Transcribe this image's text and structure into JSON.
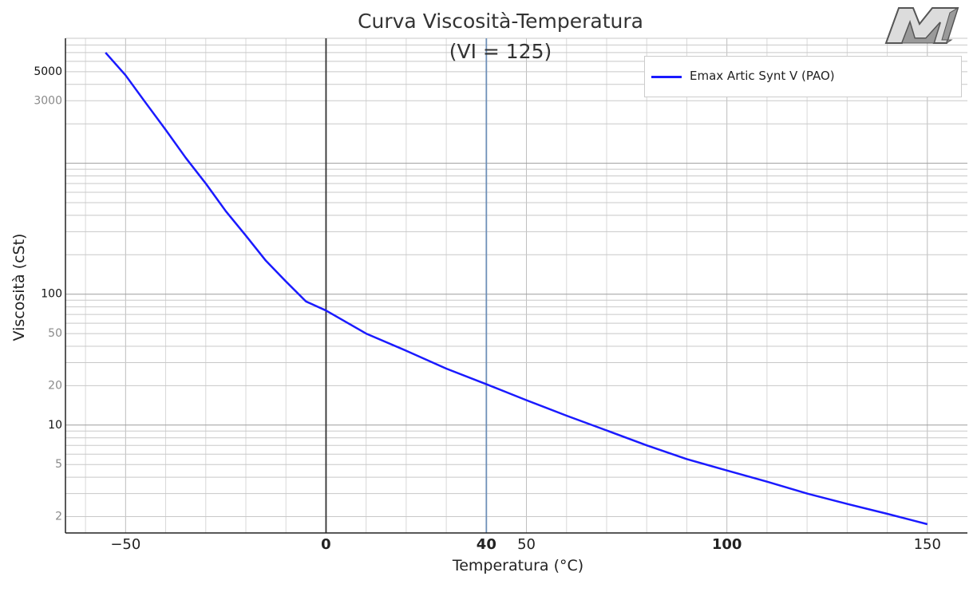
{
  "chart_data": {
    "type": "line",
    "title": "Curva Viscosità-Temperatura",
    "subtitle": "(VI = 125)",
    "xlabel": "Temperatura (°C)",
    "ylabel": "Viscosità (cSt)",
    "xlim": [
      -65,
      160
    ],
    "ylim": [
      1.5,
      9000
    ],
    "yscale": "log",
    "grid": true,
    "legend_position": "top-right",
    "xticks": [
      {
        "value": -50,
        "label": "−50",
        "bold": false
      },
      {
        "value": 0,
        "label": "0",
        "bold": true
      },
      {
        "value": 40,
        "label": "40",
        "bold": true
      },
      {
        "value": 50,
        "label": "50",
        "bold": false
      },
      {
        "value": 100,
        "label": "100",
        "bold": true
      },
      {
        "value": 150,
        "label": "150",
        "bold": false
      }
    ],
    "yticks": [
      {
        "value": 5000,
        "label": "5000",
        "major": true
      },
      {
        "value": 3000,
        "label": "3000",
        "major": false
      },
      {
        "value": 100,
        "label": "100",
        "major": true
      },
      {
        "value": 50,
        "label": "50",
        "major": false
      },
      {
        "value": 20,
        "label": "20",
        "major": false
      },
      {
        "value": 10,
        "label": "10",
        "major": true
      },
      {
        "value": 5,
        "label": "5",
        "major": false
      },
      {
        "value": 2,
        "label": "2",
        "major": false
      }
    ],
    "reference_lines": [
      {
        "x": 0,
        "color": "#333333"
      },
      {
        "x": 40,
        "color": "#6e8fb8"
      }
    ],
    "series": [
      {
        "name": "Emax Artic Synt V (PAO)",
        "color": "#1a1aff",
        "x": [
          -55,
          -50,
          -45,
          -40,
          -35,
          -30,
          -25,
          -20,
          -15,
          -10,
          -5,
          0,
          10,
          20,
          30,
          40,
          50,
          60,
          70,
          80,
          90,
          100,
          110,
          120,
          130,
          140,
          150
        ],
        "y": [
          7000,
          4700,
          2900,
          1800,
          1100,
          700,
          430,
          280,
          180,
          125,
          88,
          75,
          50,
          37,
          27,
          20.5,
          15.5,
          11.8,
          9.1,
          7.0,
          5.5,
          4.5,
          3.7,
          3.0,
          2.5,
          2.1,
          1.75
        ]
      }
    ]
  },
  "icons": {
    "logo": "m-logo-icon"
  }
}
